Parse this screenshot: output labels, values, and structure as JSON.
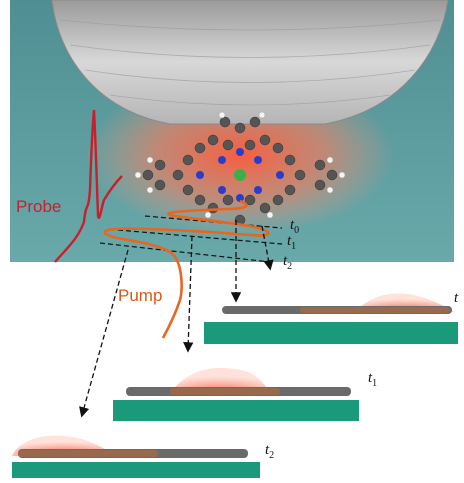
{
  "labels": {
    "probe": "Probe",
    "pump": "Pump",
    "time_base": "t",
    "t0_sub": "0",
    "t1_sub": "1",
    "t2_sub": "2",
    "panel_t0_base": "t",
    "panel_t1_base": "t",
    "panel_t1_sub": "1",
    "panel_t2_base": "t",
    "panel_t2_sub": "2"
  },
  "colors": {
    "background_top": "#5e9ea0",
    "tip": "#c8c8c8",
    "glow": "#ff6b4a",
    "probe": "#c8202a",
    "pump": "#e8661e",
    "substrate": "#1a9a7a",
    "density": "#ee4a2a"
  },
  "icons": [
    "stm-tip",
    "molecule",
    "probe-pulse",
    "pump-pulse",
    "arrow"
  ]
}
